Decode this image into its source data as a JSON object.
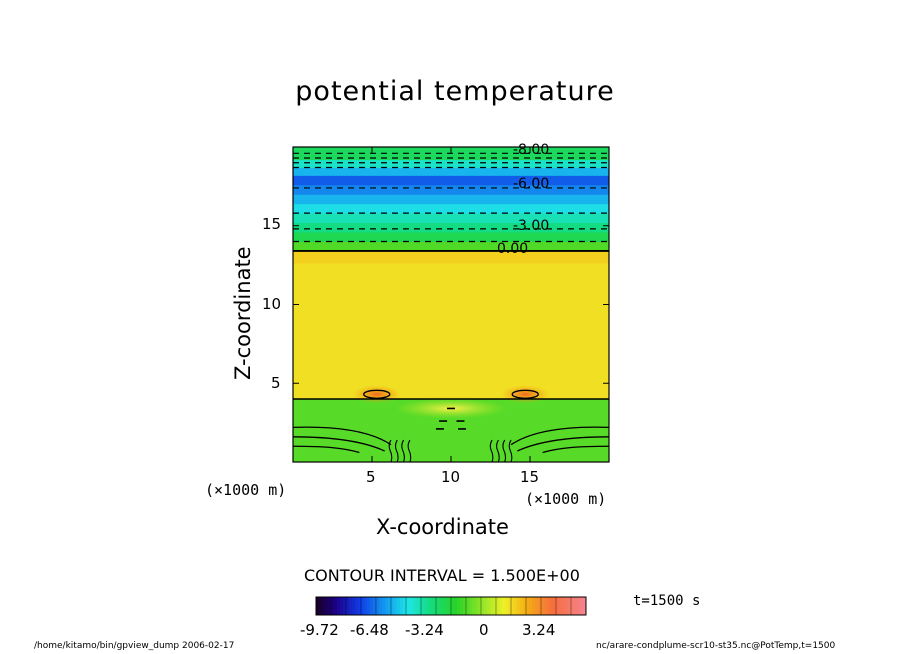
{
  "chart_data": {
    "type": "heatmap",
    "title": "potential temperature",
    "xlabel": "X-coordinate",
    "ylabel": "Z-coordinate",
    "x_unit": "(×1000 m)",
    "z_unit": "(×1000 m)",
    "xlim": [
      0,
      20
    ],
    "ylim": [
      0,
      20
    ],
    "x_ticks": [
      "5",
      "10",
      "15"
    ],
    "y_ticks": [
      "5",
      "10",
      "15"
    ],
    "contour_interval_text": "CONTOUR INTERVAL = 1.500E+00",
    "contour_labels": [
      "-8.00",
      "-6.00",
      "-3.00",
      "0.00"
    ],
    "time_label": "t=1500 s",
    "colorbar": {
      "min": -9.72,
      "max": 4.86,
      "tick_labels": [
        "-9.72",
        "-6.48",
        "-3.24",
        "0",
        "3.24"
      ],
      "tick_values": [
        -9.72,
        -6.48,
        -3.24,
        0,
        3.24
      ]
    },
    "layers": [
      {
        "z_from": 0,
        "z_to": 4,
        "value": -1.5,
        "description": "lower boundary layer"
      },
      {
        "z_from": 4,
        "z_to": 13.4,
        "value": 0.8
      },
      {
        "z_from": 13.4,
        "z_to": 14.2,
        "value": -1.6
      },
      {
        "z_from": 14.2,
        "z_to": 16,
        "value": -3.5
      },
      {
        "z_from": 16,
        "z_to": 17,
        "value": -5.0
      },
      {
        "z_from": 17,
        "z_to": 18.2,
        "value": -6.8
      },
      {
        "z_from": 18.2,
        "z_to": 20,
        "value": -4.0
      }
    ],
    "grid": false
  },
  "footer": {
    "left": "/home/kitamo/bin/gpview_dump  2006-02-17",
    "right": "nc/arare-condplume-scr10-st35.nc@PotTemp,t=1500"
  }
}
